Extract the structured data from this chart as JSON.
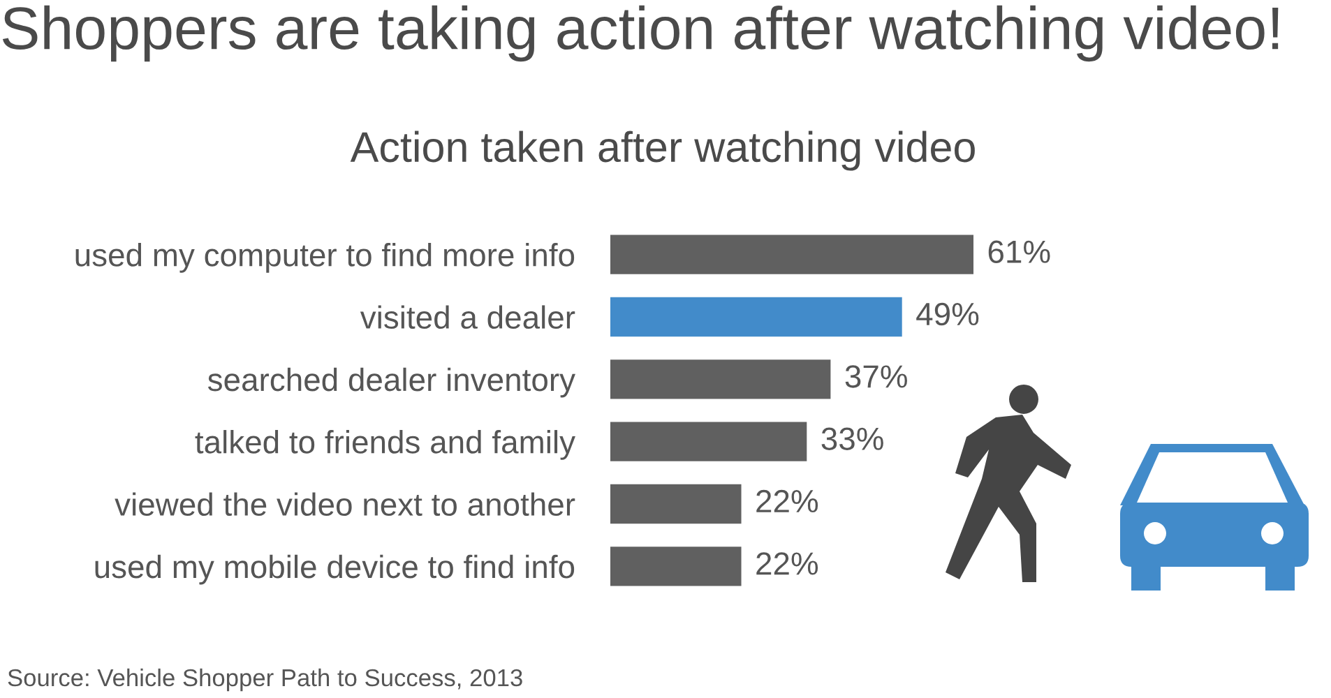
{
  "chart_data": {
    "type": "bar",
    "orientation": "horizontal",
    "title": "Shoppers are taking action after watching video!",
    "subtitle": "Action taken after watching video",
    "categories": [
      "used my computer to find more info",
      "visited a dealer",
      "searched dealer inventory",
      "talked to friends and family",
      "viewed the video next to another",
      "used my mobile device to find info"
    ],
    "values": [
      61,
      49,
      37,
      33,
      22,
      22
    ],
    "colors": [
      "#606060",
      "#428bca",
      "#606060",
      "#606060",
      "#606060",
      "#606060"
    ],
    "value_labels": [
      "61%",
      "49%",
      "37%",
      "33%",
      "22%",
      "22%"
    ],
    "annotations": [
      "Source: Vehicle Shopper Path to Success, 2013"
    ],
    "tick_labels": "y"
  }
}
